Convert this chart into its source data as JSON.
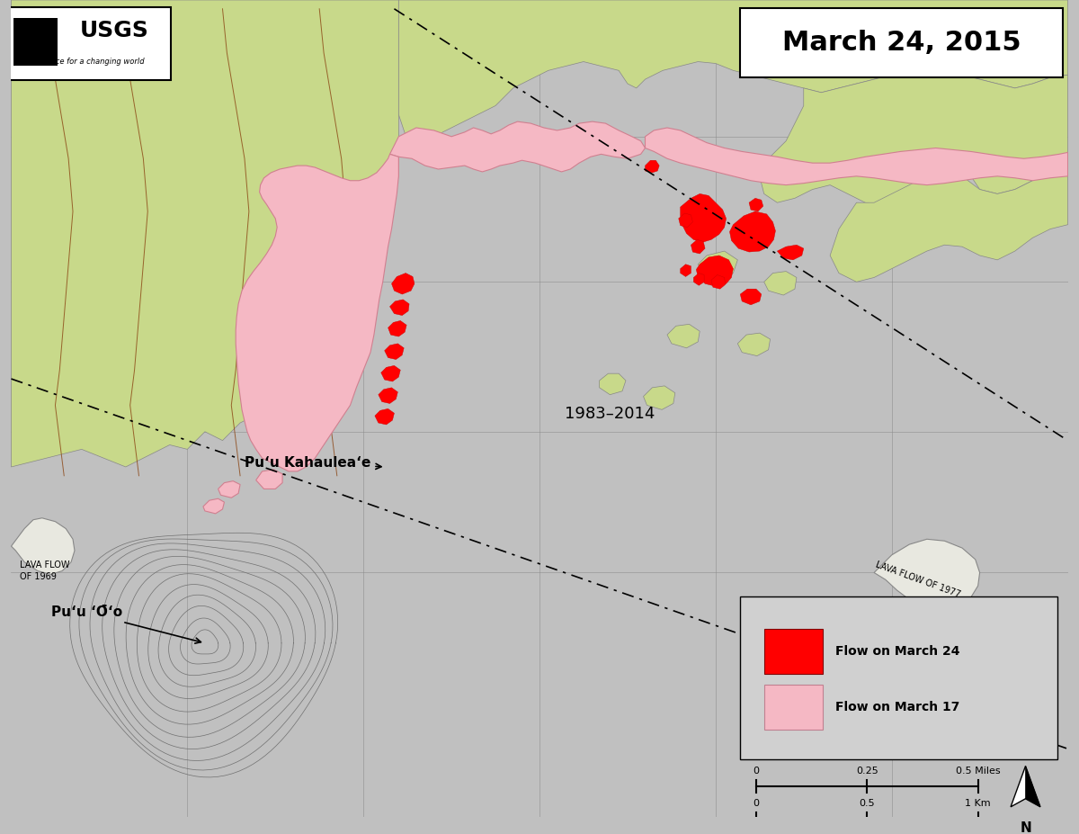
{
  "title": "March 24, 2015",
  "bg_color": "#c0c0c0",
  "forest_color": "#c8d98a",
  "lava_march17_color": "#f5b8c4",
  "lava_march24_color": "#ff0000",
  "lava_march17_edge": "#d08090",
  "legend_march24": "Flow on March 24",
  "legend_march17": "Flow on March 17",
  "annotation_puu_oo": "Puʻu ʻŌʻo",
  "annotation_puu_kahaulea": "Puʻu Kahauleaʻe",
  "annotation_1983": "1983–2014",
  "contour_color": "#707070",
  "road_color": "#8b4513",
  "grid_color": "#888888",
  "label_lava1969": "LAVA FLOW\nOF 1969",
  "label_lava1977": "LAVA FLOW OF 1977",
  "forest_edge": "#888888",
  "white_area_color": "#f0f0f0"
}
